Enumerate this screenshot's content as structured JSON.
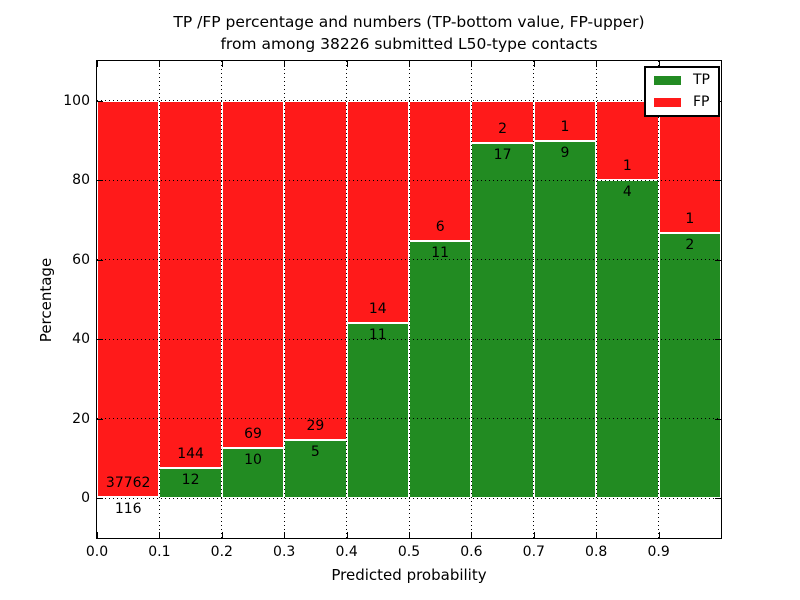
{
  "figure": {
    "title_line1": "TP /FP percentage and numbers (TP-bottom value, FP-upper)",
    "title_line2": "from among 38226 submitted L50-type contacts",
    "xlabel": "Predicted probability",
    "ylabel": "Percentage"
  },
  "legend": {
    "items": [
      {
        "label": "TP",
        "color": "#228B22"
      },
      {
        "label": "FP",
        "color": "#ff1a1a"
      }
    ]
  },
  "chart_data": {
    "type": "bar",
    "stacked": true,
    "normalized_to_percent": true,
    "title": "TP /FP percentage and numbers (TP-bottom value, FP-upper) from among 38226 submitted L50-type contacts",
    "xlabel": "Predicted probability",
    "ylabel": "Percentage",
    "total_submitted_contacts": 38226,
    "x_bin_edges": [
      0.0,
      0.1,
      0.2,
      0.3,
      0.4,
      0.5,
      0.6,
      0.7,
      0.8,
      0.9,
      1.0
    ],
    "x_tick_labels": [
      "0.0",
      "0.1",
      "0.2",
      "0.3",
      "0.4",
      "0.5",
      "0.6",
      "0.7",
      "0.8",
      "0.9"
    ],
    "y_ticks": [
      0,
      20,
      40,
      60,
      80,
      100
    ],
    "xlim": [
      0,
      1
    ],
    "ylim": [
      -10,
      110
    ],
    "grid": true,
    "grid_style": "dotted",
    "bar_edge_color": "#ffffff",
    "legend_position": "upper right",
    "series": [
      {
        "name": "TP",
        "color": "#228B22",
        "counts": [
          116,
          12,
          10,
          5,
          11,
          11,
          17,
          9,
          4,
          2
        ]
      },
      {
        "name": "FP",
        "color": "#ff1a1a",
        "counts": [
          37762,
          144,
          69,
          29,
          14,
          6,
          2,
          1,
          1,
          1
        ]
      }
    ],
    "tp_percent_per_bin": [
      0.31,
      7.69,
      12.66,
      14.71,
      44.0,
      64.71,
      89.47,
      90.0,
      80.0,
      66.67
    ]
  }
}
